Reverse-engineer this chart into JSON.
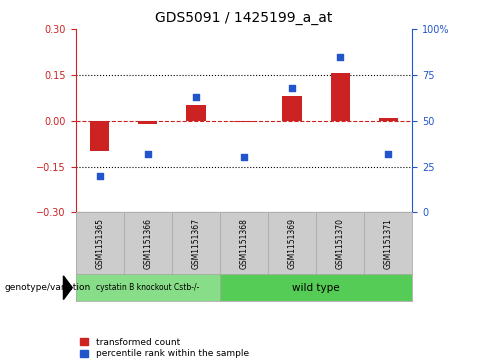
{
  "title": "GDS5091 / 1425199_a_at",
  "samples": [
    "GSM1151365",
    "GSM1151366",
    "GSM1151367",
    "GSM1151368",
    "GSM1151369",
    "GSM1151370",
    "GSM1151371"
  ],
  "bar_values": [
    -0.1,
    -0.01,
    0.05,
    -0.005,
    0.08,
    0.155,
    0.008
  ],
  "scatter_values": [
    20,
    32,
    63,
    30,
    68,
    85,
    32
  ],
  "bar_color": "#cc2222",
  "scatter_color": "#2255cc",
  "dashed_line_color": "#cc2222",
  "ylim_left": [
    -0.3,
    0.3
  ],
  "ylim_right": [
    0,
    100
  ],
  "yticks_left": [
    -0.3,
    -0.15,
    0.0,
    0.15,
    0.3
  ],
  "yticks_right": [
    0,
    25,
    50,
    75,
    100
  ],
  "group_labels": [
    "cystatin B knockout Cstb-/-",
    "wild type"
  ],
  "group_ranges": [
    [
      0,
      2
    ],
    [
      3,
      6
    ]
  ],
  "group_colors": [
    "#88dd88",
    "#55cc55"
  ],
  "genotype_label": "genotype/variation",
  "legend_bar": "transformed count",
  "legend_scatter": "percentile rank within the sample",
  "background_color": "#ffffff",
  "gray_box_color": "#cccccc",
  "border_color": "#aaaaaa",
  "tick_label_fontsize": 7,
  "title_fontsize": 10
}
